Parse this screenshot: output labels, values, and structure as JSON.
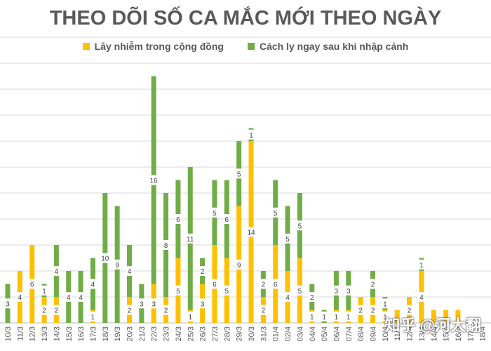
{
  "chart_data": {
    "type": "bar",
    "stacked": true,
    "title": "THEO DÕI SỐ CA MẮC MỚI THEO NGÀY",
    "legend_position": "top",
    "grid": true,
    "ylim": [
      0,
      22
    ],
    "categories": [
      "10/3",
      "11/3",
      "12/3",
      "13/3",
      "14/3",
      "15/3",
      "16/3",
      "17/3",
      "18/3",
      "19/3",
      "20/3",
      "21/3",
      "22/3",
      "23/3",
      "24/3",
      "25/3",
      "26/3",
      "27/3",
      "28/3",
      "29/3",
      "30/3",
      "31/3",
      "01/4",
      "02/4",
      "03/4",
      "04/4",
      "05/4",
      "06/4",
      "07/4",
      "08/4",
      "09/4",
      "10/4",
      "11/4",
      "12/4",
      "13/4",
      "14/4",
      "15/4",
      "16/4",
      "17/4",
      "18/4"
    ],
    "series": [
      {
        "name": "Lây nhiễm trong cộng đồng",
        "color": "#FFC000",
        "values": [
          0,
          4,
          6,
          2,
          2,
          0,
          0,
          1,
          0,
          0,
          2,
          0,
          3,
          2,
          5,
          1,
          3,
          6,
          5,
          9,
          14,
          2,
          6,
          4,
          5,
          1,
          0,
          1,
          1,
          2,
          2,
          1,
          1,
          2,
          4,
          1,
          1,
          1,
          0,
          0
        ]
      },
      {
        "name": "Cách ly ngay sau khi nhập cảnh",
        "color": "#70AD47",
        "values": [
          3,
          0,
          0,
          1,
          4,
          4,
          4,
          4,
          10,
          9,
          4,
          3,
          16,
          8,
          6,
          11,
          2,
          5,
          6,
          5,
          1,
          2,
          5,
          5,
          5,
          2,
          1,
          3,
          3,
          0,
          2,
          1,
          0,
          0,
          1,
          0,
          0,
          0,
          0,
          0
        ]
      }
    ],
    "label_values": {
      "yellow": [
        null,
        4,
        6,
        2,
        2,
        null,
        null,
        1,
        null,
        null,
        2,
        null,
        3,
        2,
        5,
        1,
        3,
        6,
        5,
        9,
        14,
        2,
        6,
        4,
        5,
        1,
        null,
        1,
        1,
        2,
        2,
        1,
        null,
        2,
        4,
        null,
        null,
        null,
        null,
        null
      ],
      "green": [
        3,
        null,
        null,
        1,
        4,
        4,
        4,
        4,
        10,
        9,
        4,
        3,
        16,
        8,
        6,
        11,
        2,
        5,
        6,
        5,
        1,
        2,
        5,
        5,
        5,
        2,
        1,
        3,
        3,
        null,
        2,
        1,
        null,
        null,
        1,
        null,
        null,
        null,
        null,
        null
      ]
    }
  },
  "watermark": "知乎 @河大翻"
}
